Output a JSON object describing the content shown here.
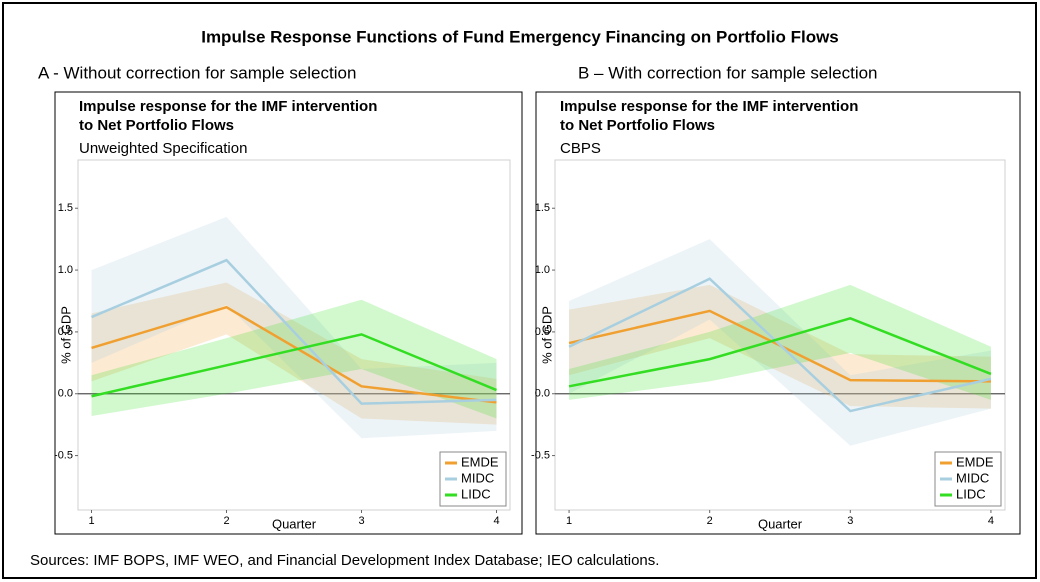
{
  "title": "Impulse Response Functions of Fund Emergency Financing on Portfolio Flows",
  "panel_labels": [
    "A - Without correction for sample selection",
    "B – With correction for sample selection"
  ],
  "source": "Sources: IMF BOPS, IMF WEO, and Financial Development Index Database; IEO calculations.",
  "chart_data": [
    {
      "type": "line",
      "title": [
        "Impulse response for the IMF intervention",
        "to Net Portfolio Flows"
      ],
      "subtitle": "Unweighted Specification",
      "x_label": "Quarter",
      "y_label": "% of GDP",
      "x": [
        1,
        2,
        3,
        4
      ],
      "xlim": [
        0.9,
        4.1
      ],
      "xticks": [
        1,
        2,
        3,
        4
      ],
      "ylim": [
        -0.94,
        1.89
      ],
      "yticks": [
        -0.5,
        {
          "value": 0,
          "label": "0.0"
        },
        0.5,
        {
          "value": 1,
          "label": "1.0"
        },
        1.5
      ],
      "hline": 0,
      "legend": "bottom-right",
      "series": [
        {
          "name": "EMDE",
          "color": "#f0a030",
          "values": [
            0.37,
            0.7,
            0.06,
            -0.07
          ],
          "upper": [
            0.65,
            0.9,
            0.28,
            0.12
          ],
          "lower": [
            0.1,
            0.48,
            -0.2,
            -0.25
          ]
        },
        {
          "name": "MIDC",
          "color": "#a8cfe0",
          "values": [
            0.62,
            1.08,
            -0.08,
            -0.05
          ],
          "upper": [
            1.0,
            1.43,
            0.2,
            0.25
          ],
          "lower": [
            0.25,
            0.72,
            -0.36,
            -0.3
          ]
        },
        {
          "name": "LIDC",
          "color": "#33dd22",
          "values": [
            -0.02,
            0.23,
            0.48,
            0.03
          ],
          "upper": [
            0.15,
            0.45,
            0.76,
            0.28
          ],
          "lower": [
            -0.18,
            0.0,
            0.2,
            -0.2
          ]
        }
      ]
    },
    {
      "type": "line",
      "title": [
        "Impulse response for the IMF intervention",
        "to Net Portfolio Flows"
      ],
      "subtitle": "CBPS",
      "x_label": "Quarter",
      "y_label": "% of GDP",
      "x": [
        1,
        2,
        3,
        4
      ],
      "xlim": [
        0.9,
        4.1
      ],
      "xticks": [
        1,
        2,
        3,
        4
      ],
      "ylim": [
        -0.94,
        1.89
      ],
      "yticks": [
        -0.5,
        {
          "value": 0,
          "label": "0.0"
        },
        0.5,
        {
          "value": 1,
          "label": "1.0"
        },
        1.5
      ],
      "hline": 0,
      "legend": "bottom-right",
      "series": [
        {
          "name": "EMDE",
          "color": "#f0a030",
          "values": [
            0.41,
            0.67,
            0.11,
            0.1
          ],
          "upper": [
            0.68,
            0.88,
            0.32,
            0.3
          ],
          "lower": [
            0.15,
            0.45,
            -0.1,
            -0.12
          ]
        },
        {
          "name": "MIDC",
          "color": "#a8cfe0",
          "values": [
            0.38,
            0.93,
            -0.14,
            0.12
          ],
          "upper": [
            0.75,
            1.25,
            0.15,
            0.35
          ],
          "lower": [
            0.0,
            0.6,
            -0.42,
            -0.12
          ]
        },
        {
          "name": "LIDC",
          "color": "#33dd22",
          "values": [
            0.06,
            0.28,
            0.61,
            0.16
          ],
          "upper": [
            0.2,
            0.5,
            0.88,
            0.38
          ],
          "lower": [
            -0.05,
            0.1,
            0.33,
            -0.05
          ]
        }
      ]
    }
  ]
}
